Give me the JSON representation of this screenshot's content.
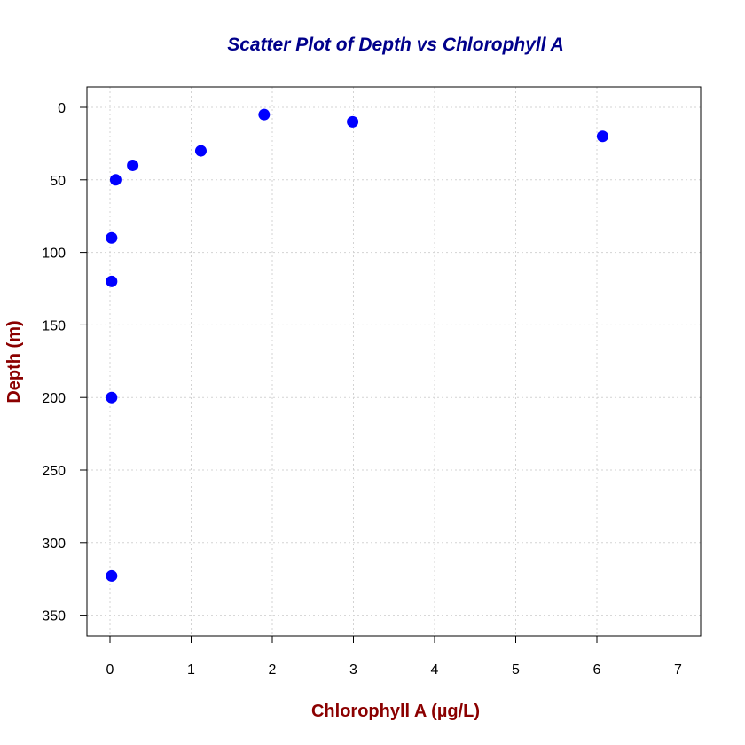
{
  "chart_data": {
    "type": "scatter",
    "title": "Scatter Plot of Depth vs Chlorophyll A",
    "xlabel": "Chlorophyll A (µg/L)",
    "ylabel": "Depth (m)",
    "xlim": [
      0,
      7
    ],
    "ylim": [
      0,
      350
    ],
    "y_reversed": true,
    "xticks": [
      "0",
      "1",
      "2",
      "3",
      "4",
      "5",
      "6",
      "7"
    ],
    "yticks": [
      "0",
      "50",
      "100",
      "150",
      "200",
      "250",
      "300",
      "350"
    ],
    "grid": true,
    "x": [
      1.9,
      2.99,
      6.07,
      1.12,
      0.28,
      0.07,
      0.02,
      0.02,
      0.02,
      0.02
    ],
    "y": [
      5,
      10,
      20,
      30,
      40,
      50,
      90,
      120,
      200,
      323
    ]
  },
  "colors": {
    "title": "#00008b",
    "axis_title": "#8b0000",
    "points": "#0000ff",
    "grid": "#d3d3d3",
    "axis": "#000000"
  }
}
